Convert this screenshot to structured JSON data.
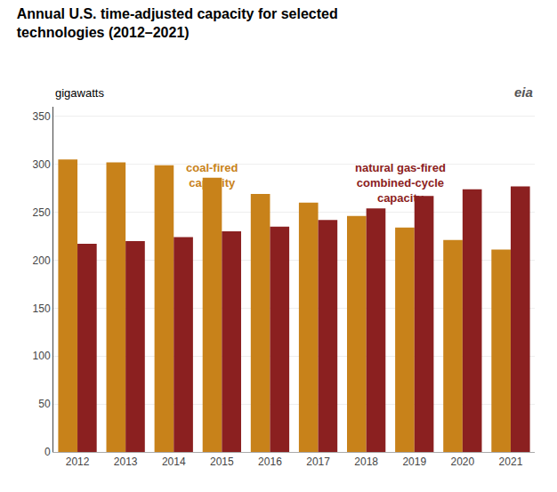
{
  "chart_data": {
    "type": "bar",
    "title": "Annual U.S. time-adjusted capacity for selected\ntechnologies (2012–2021)",
    "ylabel": "gigawatts",
    "categories": [
      2012,
      2013,
      2014,
      2015,
      2016,
      2017,
      2018,
      2019,
      2020,
      2021
    ],
    "series": [
      {
        "color": "#C8821A",
        "values": [
          305,
          302,
          299,
          286,
          269,
          260,
          246,
          234,
          221,
          211
        ]
      },
      {
        "color": "#8B2020",
        "values": [
          217,
          220,
          224,
          230,
          235,
          242,
          254,
          267,
          274,
          277
        ]
      }
    ],
    "ylim": [
      0,
      360
    ],
    "yticks": [
      0,
      50,
      100,
      150,
      200,
      250,
      300,
      350
    ],
    "grid": true,
    "annotations": [
      {
        "text": "coal-fired\ncapacity",
        "x": 2.8,
        "y": 305,
        "color": "#C8821A"
      },
      {
        "text": "natural gas-fired\ncombined-cycle\ncapacity",
        "x": 6.7,
        "y": 305,
        "color": "#8B2020"
      },
      {
        "text": "eia"
      }
    ]
  }
}
